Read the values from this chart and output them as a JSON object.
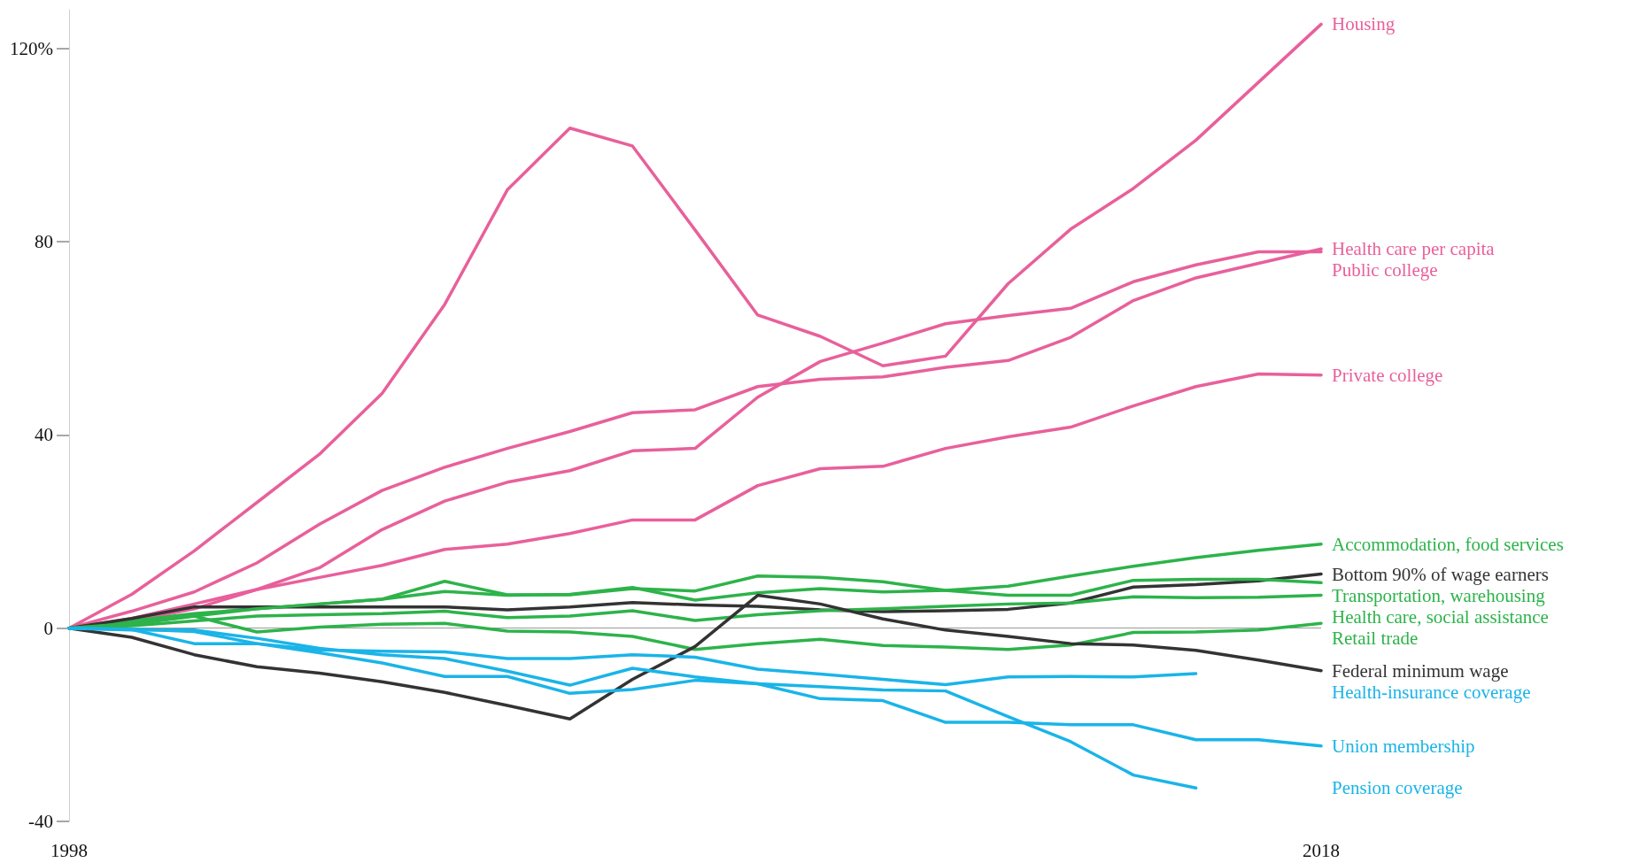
{
  "chart_data": {
    "type": "line",
    "x": [
      1998,
      1999,
      2000,
      2001,
      2002,
      2003,
      2004,
      2005,
      2006,
      2007,
      2008,
      2009,
      2010,
      2011,
      2012,
      2013,
      2014,
      2015,
      2016,
      2017,
      2018
    ],
    "xlim": [
      1998,
      2018
    ],
    "xticks": [
      1998,
      2018
    ],
    "ylim": [
      -40,
      128
    ],
    "yticks": [
      -40,
      0,
      40,
      80,
      {
        "value": 120,
        "label": "120%"
      }
    ],
    "grid": false,
    "legend": false,
    "marker": "none",
    "line_style": "solid",
    "ref_lines": [
      {
        "axis": "y",
        "value": 0,
        "color": "#9a9a9a"
      }
    ],
    "series": [
      {
        "name": "Housing",
        "color": "#e8609b",
        "values": [
          0,
          7,
          16,
          26,
          36,
          48.6,
          67,
          90.7,
          103.5,
          99.8,
          82.4,
          64.8,
          60.4,
          54.3,
          56.3,
          71.3,
          82.6,
          91,
          101,
          113,
          125
        ]
      },
      {
        "name": "Health care per capita",
        "color": "#e8609b",
        "values": [
          0,
          3.5,
          7.5,
          13.5,
          21.5,
          28.5,
          33.3,
          37.2,
          40.7,
          44.6,
          45.2,
          50,
          51.5,
          52,
          54,
          55.4,
          60.2,
          67.8,
          72.5,
          75.5,
          78.5
        ]
      },
      {
        "name": "Public college",
        "color": "#e8609b",
        "values": [
          0,
          2,
          5,
          8,
          12.5,
          20.4,
          26.3,
          30.2,
          32.6,
          36.7,
          37.2,
          47.8,
          55.2,
          59,
          63,
          64.7,
          66.2,
          71.7,
          75.2,
          77.9,
          77.9
        ]
      },
      {
        "name": "Private college",
        "color": "#e8609b",
        "values": [
          0,
          1.5,
          4,
          8,
          10.5,
          13,
          16.3,
          17.4,
          19.6,
          22.4,
          22.4,
          29.5,
          33,
          33.5,
          37.2,
          39.6,
          41.6,
          46,
          50,
          52.6,
          52.4
        ]
      },
      {
        "name": "Accommodation, food services",
        "color": "#2db34a",
        "values": [
          0,
          1.5,
          3,
          4,
          5,
          6,
          7.6,
          6.8,
          7,
          8.4,
          5.8,
          7.3,
          8.2,
          7.5,
          7.8,
          8.7,
          10.8,
          12.8,
          14.6,
          16.1,
          17.4
        ]
      },
      {
        "name": "Bottom 90% of wage earners",
        "color": "#333333",
        "values": [
          0,
          2,
          4.4,
          4.4,
          4.4,
          4.4,
          4.4,
          3.8,
          4.4,
          5.3,
          4.8,
          4.5,
          3.8,
          3.4,
          3.6,
          3.9,
          5.2,
          8.5,
          9,
          9.8,
          11.2
        ]
      },
      {
        "name": "Transportation, warehousing",
        "color": "#2db34a",
        "values": [
          0,
          1,
          2.5,
          4,
          5,
          6,
          9.7,
          6.9,
          6.9,
          8.2,
          7.7,
          10.8,
          10.5,
          9.6,
          7.8,
          6.8,
          6.8,
          9.9,
          10.1,
          10.1,
          9.4
        ]
      },
      {
        "name": "Health care, social assistance",
        "color": "#2db34a",
        "values": [
          0,
          0.5,
          1.5,
          2.5,
          2.8,
          3,
          3.5,
          2.2,
          2.5,
          3.6,
          1.6,
          2.8,
          3.6,
          4,
          4.5,
          5,
          5.2,
          6.5,
          6.3,
          6.4,
          6.8
        ]
      },
      {
        "name": "Retail trade",
        "color": "#2db34a",
        "values": [
          0,
          0.8,
          2.5,
          -0.8,
          0.2,
          0.8,
          1,
          -0.6,
          -0.8,
          -1.7,
          -4.4,
          -3.2,
          -2.3,
          -3.6,
          -3.9,
          -4.4,
          -3.5,
          -0.9,
          -0.8,
          -0.4,
          1
        ]
      },
      {
        "name": "Federal minimum wage",
        "color": "#333333",
        "values": [
          0,
          -1.9,
          -5.5,
          -8,
          -9.3,
          -11.1,
          -13.3,
          -16,
          -18.8,
          -10.6,
          -3.8,
          6.8,
          5,
          1.9,
          -0.4,
          -1.7,
          -3.2,
          -3.5,
          -4.6,
          -6.6,
          -8.8
        ]
      },
      {
        "name": "Health-insurance coverage",
        "color": "#1ab4e8",
        "values": [
          0,
          -0.3,
          -3.2,
          -3.2,
          -4.5,
          -4.8,
          -4.9,
          -6.3,
          -6.3,
          -5.5,
          -6,
          -8.5,
          -9.5,
          -10.6,
          -11.7,
          -10.1,
          -10,
          -10.1,
          -9.4,
          null,
          null
        ]
      },
      {
        "name": "Union membership",
        "color": "#1ab4e8",
        "values": [
          0,
          -0.4,
          -0.4,
          -2.1,
          -4.2,
          -5.5,
          -6.3,
          -8.9,
          -11.8,
          -8.3,
          -10.1,
          -11.5,
          -14.6,
          -15,
          -19.5,
          -19.5,
          -20,
          -20,
          -23.1,
          -23.1,
          -24.4
        ]
      },
      {
        "name": "Pension coverage",
        "color": "#1ab4e8",
        "values": [
          0,
          -0.2,
          -0.7,
          -3.2,
          -5.1,
          -7.2,
          -10,
          -10,
          -13.5,
          -12.7,
          -10.8,
          -11.5,
          -12.1,
          -12.8,
          -13,
          -18.3,
          -23.5,
          -30.4,
          -33.1,
          null,
          null
        ]
      }
    ]
  }
}
